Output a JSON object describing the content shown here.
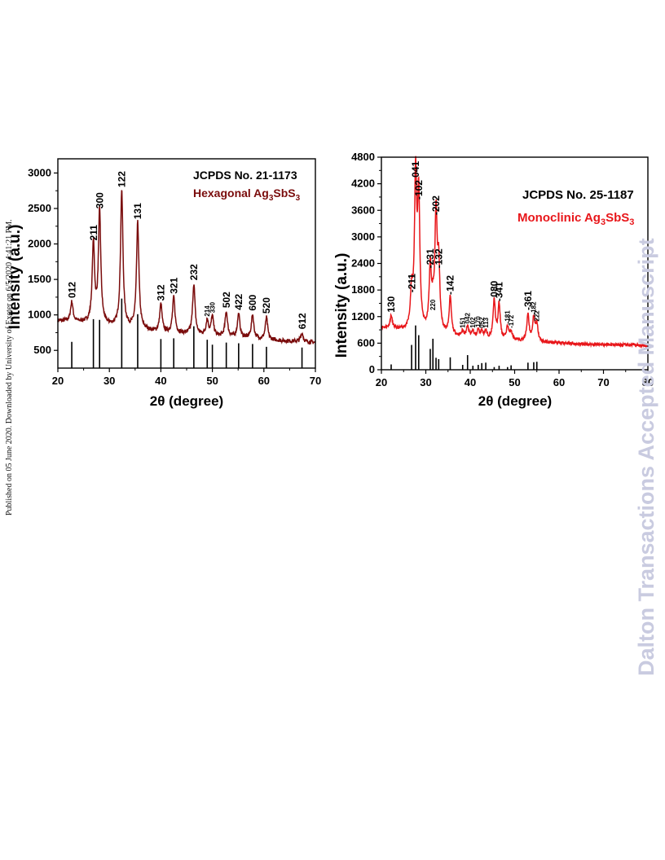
{
  "watermark": "Dalton Transactions Accepted Manuscript",
  "published_note": "Published on 05 June 2020. Downloaded by University of Exeter on 6/5/2020 4:41:21 PM.",
  "colors": {
    "left_trace": "#7a0c0c",
    "right_trace": "#e8161a",
    "ref_lines": "#000000",
    "watermark": "#c9cbe0"
  },
  "chart_data": [
    {
      "type": "line",
      "xlabel": "2θ (degree)",
      "ylabel": "Intensity (a.u.)",
      "xlim": [
        20,
        70
      ],
      "ylim": [
        250,
        3200
      ],
      "xticks": [
        20,
        30,
        40,
        50,
        60,
        70
      ],
      "yticks": [
        500,
        1000,
        1500,
        2000,
        2500,
        3000
      ],
      "reference": "JCPDS No. 21-1173",
      "phase": {
        "prefix": "Hexagonal Ag",
        "sub1": "3",
        "mid": "SbS",
        "sub2": "3"
      },
      "baseline": {
        "x": [
          20,
          25,
          30,
          35,
          40,
          45,
          50,
          55,
          60,
          65,
          70
        ],
        "y": [
          920,
          890,
          840,
          800,
          750,
          730,
          700,
          680,
          650,
          630,
          610
        ]
      },
      "peaks": [
        {
          "hkl": "012",
          "x": 22.7,
          "y": 1180
        },
        {
          "hkl": "211",
          "x": 26.9,
          "y": 1990
        },
        {
          "hkl": "300",
          "x": 28.1,
          "y": 2440
        },
        {
          "hkl": "122",
          "x": 32.4,
          "y": 2740
        },
        {
          "hkl": "131",
          "x": 35.5,
          "y": 2290
        },
        {
          "hkl": "312",
          "x": 40.0,
          "y": 1140
        },
        {
          "hkl": "321",
          "x": 42.5,
          "y": 1240
        },
        {
          "hkl": "232",
          "x": 46.4,
          "y": 1430
        },
        {
          "hkl": "214",
          "x": 49.0,
          "y": 920
        },
        {
          "hkl": "330",
          "x": 50.0,
          "y": 970
        },
        {
          "hkl": "502",
          "x": 52.7,
          "y": 1040
        },
        {
          "hkl": "422",
          "x": 55.1,
          "y": 1010
        },
        {
          "hkl": "600",
          "x": 57.8,
          "y": 1000
        },
        {
          "hkl": "520",
          "x": 60.5,
          "y": 960
        },
        {
          "hkl": "612",
          "x": 67.4,
          "y": 740
        }
      ],
      "ref_lines": [
        {
          "x": 22.7,
          "h": 370
        },
        {
          "x": 26.9,
          "h": 690
        },
        {
          "x": 28.1,
          "h": 680
        },
        {
          "x": 32.4,
          "h": 980
        },
        {
          "x": 35.5,
          "h": 760
        },
        {
          "x": 40.0,
          "h": 410
        },
        {
          "x": 42.5,
          "h": 420
        },
        {
          "x": 46.4,
          "h": 590
        },
        {
          "x": 49.0,
          "h": 400
        },
        {
          "x": 50.0,
          "h": 330
        },
        {
          "x": 52.7,
          "h": 360
        },
        {
          "x": 55.1,
          "h": 350
        },
        {
          "x": 57.8,
          "h": 340
        },
        {
          "x": 60.5,
          "h": 300
        },
        {
          "x": 67.4,
          "h": 290
        }
      ]
    },
    {
      "type": "line",
      "xlabel": "2θ (degree)",
      "ylabel": "Intensity (a.u.)",
      "xlim": [
        20,
        80
      ],
      "ylim": [
        0,
        4800
      ],
      "xticks": [
        20,
        30,
        40,
        50,
        60,
        70,
        80
      ],
      "yticks": [
        0,
        600,
        1200,
        1800,
        2400,
        3000,
        3600,
        4200,
        4800
      ],
      "reference": "JCPDS No. 25-1187",
      "phase": {
        "prefix": "Monoclinic Ag",
        "sub1": "3",
        "mid": "SbS",
        "sub2": "3"
      },
      "baseline": {
        "x": [
          20,
          25,
          30,
          35,
          40,
          45,
          50,
          55,
          60,
          65,
          70,
          75,
          80
        ],
        "y": [
          950,
          880,
          820,
          760,
          720,
          680,
          650,
          620,
          600,
          580,
          570,
          560,
          550
        ]
      },
      "peaks": [
        {
          "hkl": "130",
          "x": 22.2,
          "y": 1200
        },
        {
          "hkl": "-211",
          "x": 26.8,
          "y": 1650
        },
        {
          "hkl": "041",
          "x": 27.7,
          "y": 4250
        },
        {
          "hkl": "-102",
          "x": 28.4,
          "y": 3750
        },
        {
          "hkl": "-231",
          "x": 31.0,
          "y": 2200
        },
        {
          "hkl": "220",
          "x": 31.6,
          "y": 1250
        },
        {
          "hkl": "-202",
          "x": 32.3,
          "y": 3400
        },
        {
          "hkl": "-132",
          "x": 32.9,
          "y": 2200
        },
        {
          "hkl": "-142",
          "x": 35.5,
          "y": 1600
        },
        {
          "hkl": "151",
          "x": 38.3,
          "y": 850
        },
        {
          "hkl": "042",
          "x": 39.4,
          "y": 950
        },
        {
          "hkl": "102",
          "x": 40.6,
          "y": 850
        },
        {
          "hkl": "170",
          "x": 41.8,
          "y": 870
        },
        {
          "hkl": "052",
          "x": 42.6,
          "y": 850
        },
        {
          "hkl": "113",
          "x": 43.5,
          "y": 850
        },
        {
          "hkl": "080",
          "x": 45.4,
          "y": 1550
        },
        {
          "hkl": "-341",
          "x": 46.5,
          "y": 1450
        },
        {
          "hkl": "-181",
          "x": 48.4,
          "y": 950
        },
        {
          "hkl": "-172",
          "x": 49.2,
          "y": 850
        },
        {
          "hkl": "-361",
          "x": 53.0,
          "y": 1250
        },
        {
          "hkl": "-182",
          "x": 54.3,
          "y": 1150
        },
        {
          "hkl": "222",
          "x": 55.0,
          "y": 1000
        }
      ],
      "ref_lines": [
        {
          "x": 22.2,
          "h": 120
        },
        {
          "x": 26.8,
          "h": 560
        },
        {
          "x": 27.7,
          "h": 1000
        },
        {
          "x": 28.4,
          "h": 780
        },
        {
          "x": 31.0,
          "h": 470
        },
        {
          "x": 31.6,
          "h": 700
        },
        {
          "x": 32.3,
          "h": 270
        },
        {
          "x": 32.9,
          "h": 240
        },
        {
          "x": 35.5,
          "h": 280
        },
        {
          "x": 38.3,
          "h": 110
        },
        {
          "x": 39.4,
          "h": 330
        },
        {
          "x": 40.6,
          "h": 90
        },
        {
          "x": 41.8,
          "h": 110
        },
        {
          "x": 42.6,
          "h": 150
        },
        {
          "x": 43.5,
          "h": 160
        },
        {
          "x": 45.4,
          "h": 60
        },
        {
          "x": 46.5,
          "h": 90
        },
        {
          "x": 48.4,
          "h": 60
        },
        {
          "x": 49.2,
          "h": 100
        },
        {
          "x": 53.0,
          "h": 160
        },
        {
          "x": 54.3,
          "h": 170
        },
        {
          "x": 55.0,
          "h": 180
        }
      ]
    }
  ]
}
